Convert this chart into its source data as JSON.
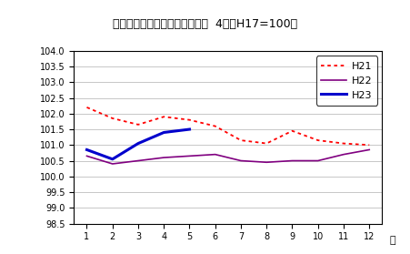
{
  "title": "生鮮食品を除く総合指数の動き  4市（H17=100）",
  "xlabel": "月",
  "ylim": [
    98.5,
    104.0
  ],
  "ytick_step": 0.5,
  "xticks": [
    1,
    2,
    3,
    4,
    5,
    6,
    7,
    8,
    9,
    10,
    11,
    12
  ],
  "H21_x": [
    1,
    2,
    3,
    4,
    5,
    6,
    7,
    8,
    9,
    10,
    11,
    12
  ],
  "H21_y": [
    102.2,
    101.85,
    101.65,
    101.9,
    101.8,
    101.6,
    101.15,
    101.05,
    101.45,
    101.15,
    101.05,
    101.0
  ],
  "H22_x": [
    1,
    2,
    3,
    4,
    5,
    6,
    7,
    8,
    9,
    10,
    11,
    12
  ],
  "H22_y": [
    100.65,
    100.4,
    100.5,
    100.6,
    100.65,
    100.7,
    100.5,
    100.45,
    100.5,
    100.5,
    100.7,
    100.85
  ],
  "H23_x": [
    1,
    2,
    3,
    4,
    5
  ],
  "H23_y": [
    100.85,
    100.55,
    101.05,
    101.4,
    101.5
  ],
  "color_H21": "#ff0000",
  "color_H22": "#800080",
  "color_H23": "#0000cc",
  "bg_color": "#ffffff",
  "grid_color": "#b0b0b0",
  "title_fontsize": 9,
  "tick_fontsize": 7,
  "legend_fontsize": 8
}
